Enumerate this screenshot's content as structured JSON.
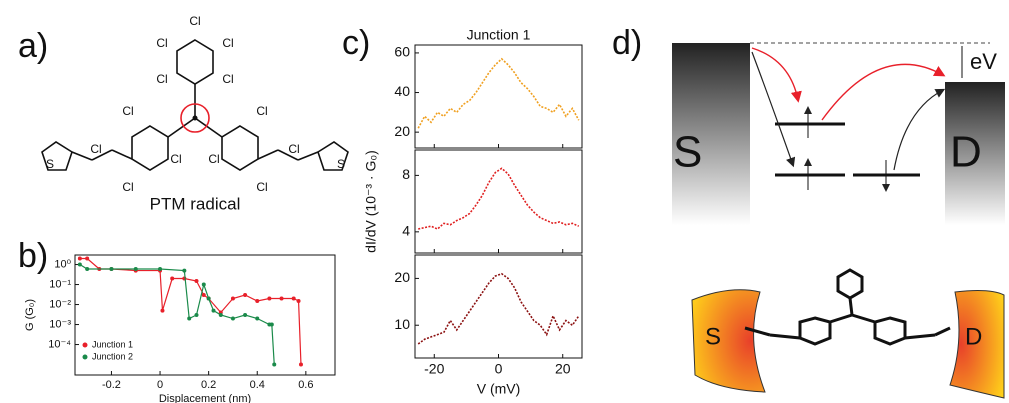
{
  "panel_labels": [
    "a)",
    "b)",
    "c)",
    "d)"
  ],
  "molecule_a": {
    "atoms": [
      "Cl",
      "Cl",
      "Cl",
      "Cl",
      "Cl",
      "Cl",
      "Cl",
      "Cl",
      "Cl",
      "Cl",
      "Cl",
      "Cl",
      "Cl"
    ],
    "sulfur": [
      "S",
      "S"
    ],
    "name": "PTM radical"
  },
  "diagram_d": {
    "source": "S",
    "drain": "D",
    "bias": "eV",
    "electrode_source": "S",
    "electrode_drain": "D"
  },
  "chart_data": [
    {
      "type": "scatter-line",
      "xlabel": "Displacement (nm)",
      "ylabel": "G (G₀)",
      "log_y": true,
      "xlim": [
        -0.35,
        0.72
      ],
      "xticks": [
        -0.2,
        0,
        0.2,
        0.4,
        0.6
      ],
      "ylim": [
        3e-06,
        3
      ],
      "yticks": [
        {
          "value": 1,
          "label": "10⁰"
        },
        {
          "value": 0.1,
          "label": "10⁻¹"
        },
        {
          "value": 0.01,
          "label": "10⁻²"
        },
        {
          "value": 0.001,
          "label": "10⁻³"
        },
        {
          "value": 0.0001,
          "label": "10⁻⁴"
        }
      ],
      "series": [
        {
          "name": "Junction 1",
          "color": "#e8202a",
          "x": [
            -0.33,
            -0.3,
            -0.25,
            -0.2,
            -0.1,
            0,
            0.01,
            0.05,
            0.1,
            0.15,
            0.18,
            0.2,
            0.25,
            0.3,
            0.35,
            0.4,
            0.45,
            0.5,
            0.55,
            0.57,
            0.58
          ],
          "values": [
            2,
            2,
            0.6,
            0.6,
            0.5,
            0.5,
            0.005,
            0.2,
            0.2,
            0.15,
            0.03,
            0.02,
            0.004,
            0.02,
            0.03,
            0.015,
            0.02,
            0.02,
            0.02,
            0.015,
            1e-05
          ]
        },
        {
          "name": "Junction 2",
          "color": "#1a8a4a",
          "x": [
            -0.33,
            -0.3,
            -0.2,
            -0.1,
            0,
            0.1,
            0.12,
            0.15,
            0.18,
            0.2,
            0.22,
            0.25,
            0.3,
            0.35,
            0.4,
            0.45,
            0.46,
            0.47
          ],
          "values": [
            1,
            0.6,
            0.6,
            0.6,
            0.6,
            0.5,
            0.002,
            0.003,
            0.1,
            0.02,
            0.005,
            0.003,
            0.002,
            0.003,
            0.002,
            0.001,
            0.001,
            1e-05
          ]
        }
      ]
    },
    {
      "type": "stacked-line",
      "title": "Junction 1",
      "xlabel": "V (mV)",
      "ylabel": "dI/dV (10⁻³ · G₀)",
      "xlim": [
        -26,
        26
      ],
      "xticks": [
        -20,
        0,
        20
      ],
      "x": [
        -25,
        -23,
        -21,
        -19,
        -17,
        -15,
        -13,
        -11,
        -9,
        -7,
        -5,
        -3,
        -1,
        1,
        3,
        5,
        7,
        9,
        11,
        13,
        15,
        17,
        19,
        21,
        23,
        25
      ],
      "panels": [
        {
          "ylim": [
            12,
            64
          ],
          "yticks": [
            20,
            40,
            60
          ],
          "series": [
            {
              "color": "#f0a020",
              "values": [
                22,
                28,
                25,
                30,
                28,
                32,
                30,
                34,
                36,
                40,
                45,
                50,
                54,
                57,
                54,
                50,
                45,
                42,
                38,
                33,
                32,
                30,
                34,
                28,
                32,
                26
              ]
            }
          ]
        },
        {
          "ylim": [
            2.5,
            9.8
          ],
          "yticks": [
            4,
            8
          ],
          "series": [
            {
              "color": "#e02020",
              "values": [
                4.2,
                4.3,
                4.4,
                4.2,
                4.6,
                4.5,
                4.8,
                5.0,
                5.3,
                5.9,
                6.6,
                7.5,
                8.2,
                8.5,
                8.1,
                7.3,
                6.6,
                5.9,
                5.4,
                5.0,
                4.8,
                4.6,
                4.7,
                4.5,
                4.6,
                4.4
              ]
            }
          ]
        },
        {
          "ylim": [
            3,
            25
          ],
          "yticks": [
            10,
            20
          ],
          "series": [
            {
              "color": "#8b1010",
              "values": [
                6,
                7,
                7.5,
                8,
                8.5,
                11,
                9,
                11,
                13,
                15,
                17,
                19,
                20.5,
                21,
                20,
                18,
                15,
                13,
                11,
                10,
                8,
                12,
                9,
                11,
                10,
                12
              ]
            }
          ]
        }
      ]
    }
  ]
}
